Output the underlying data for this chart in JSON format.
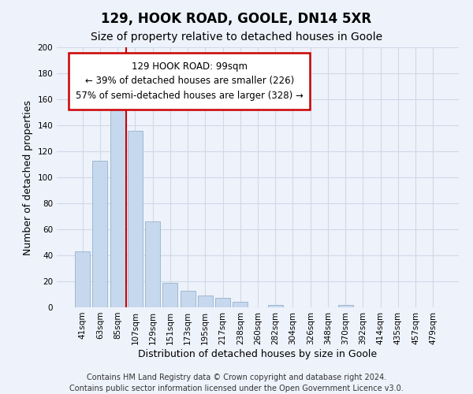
{
  "title": "129, HOOK ROAD, GOOLE, DN14 5XR",
  "subtitle": "Size of property relative to detached houses in Goole",
  "xlabel": "Distribution of detached houses by size in Goole",
  "ylabel": "Number of detached properties",
  "bar_labels": [
    "41sqm",
    "63sqm",
    "85sqm",
    "107sqm",
    "129sqm",
    "151sqm",
    "173sqm",
    "195sqm",
    "217sqm",
    "238sqm",
    "260sqm",
    "282sqm",
    "304sqm",
    "326sqm",
    "348sqm",
    "370sqm",
    "392sqm",
    "414sqm",
    "435sqm",
    "457sqm",
    "479sqm"
  ],
  "bar_heights": [
    43,
    113,
    160,
    136,
    66,
    19,
    13,
    9,
    7,
    4,
    0,
    2,
    0,
    0,
    0,
    2,
    0,
    0,
    0,
    0,
    0
  ],
  "bar_color": "#c6d8ed",
  "bar_edge_color": "#a0b8d0",
  "vline_x_index": 2,
  "vline_color": "#cc0000",
  "ylim": [
    0,
    200
  ],
  "yticks": [
    0,
    20,
    40,
    60,
    80,
    100,
    120,
    140,
    160,
    180,
    200
  ],
  "annotation_line1": "129 HOOK ROAD: 99sqm",
  "annotation_line2": "← 39% of detached houses are smaller (226)",
  "annotation_line3": "57% of semi-detached houses are larger (328) →",
  "footer_line1": "Contains HM Land Registry data © Crown copyright and database right 2024.",
  "footer_line2": "Contains public sector information licensed under the Open Government Licence v3.0.",
  "background_color": "#eef2fb",
  "plot_bg_color": "#eef2fb",
  "grid_color": "#d0d8e8",
  "title_fontsize": 12,
  "subtitle_fontsize": 10,
  "axis_label_fontsize": 9,
  "tick_fontsize": 7.5,
  "footer_fontsize": 7,
  "annotation_fontsize": 8.5
}
